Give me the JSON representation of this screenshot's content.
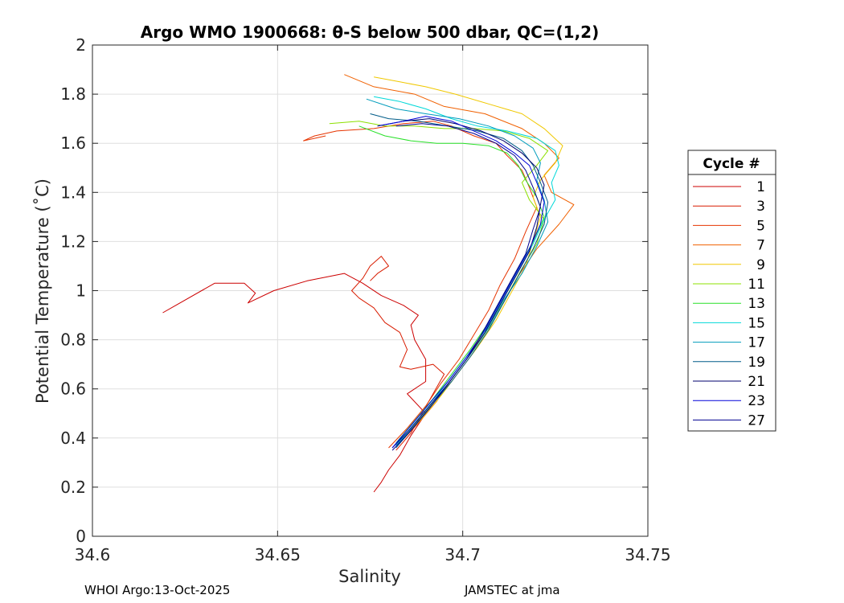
{
  "chart_data": {
    "type": "line",
    "title": "Argo WMO 1900668: θ-S below 500 dbar,  QC=(1,2)",
    "xlabel": "Salinity",
    "ylabel": "Potential Temperature (˚C)",
    "xlim": [
      34.6,
      34.75
    ],
    "ylim": [
      0,
      2
    ],
    "xticks": [
      34.6,
      34.65,
      34.7,
      34.75
    ],
    "xtick_labels": [
      "34.6",
      "34.65",
      "34.7",
      "34.75"
    ],
    "yticks": [
      0,
      0.2,
      0.4,
      0.6,
      0.8,
      1,
      1.2,
      1.4,
      1.6,
      1.8,
      2
    ],
    "ytick_labels": [
      "0",
      "0.2",
      "0.4",
      "0.6",
      "0.8",
      "1",
      "1.2",
      "1.4",
      "1.6",
      "1.8",
      "2"
    ],
    "grid": true,
    "legend": {
      "title": "Cycle #",
      "placement": "right"
    },
    "series": [
      {
        "name": "1",
        "color": "#cc0000",
        "points": [
          [
            34.676,
            0.18
          ],
          [
            34.678,
            0.22
          ],
          [
            34.68,
            0.27
          ],
          [
            34.683,
            0.33
          ],
          [
            34.686,
            0.41
          ],
          [
            34.69,
            0.5
          ],
          [
            34.685,
            0.58
          ],
          [
            34.69,
            0.63
          ],
          [
            34.69,
            0.72
          ],
          [
            34.687,
            0.8
          ],
          [
            34.686,
            0.86
          ],
          [
            34.688,
            0.9
          ],
          [
            34.684,
            0.94
          ],
          [
            34.678,
            0.98
          ],
          [
            34.673,
            1.03
          ],
          [
            34.668,
            1.07
          ],
          [
            34.658,
            1.04
          ],
          [
            34.649,
            1.0
          ],
          [
            34.642,
            0.95
          ],
          [
            34.644,
            0.99
          ],
          [
            34.641,
            1.03
          ],
          [
            34.633,
            1.03
          ],
          [
            34.619,
            0.91
          ]
        ]
      },
      {
        "name": "3",
        "color": "#d81c00",
        "points": [
          [
            34.682,
            0.35
          ],
          [
            34.686,
            0.42
          ],
          [
            34.689,
            0.5
          ],
          [
            34.692,
            0.58
          ],
          [
            34.695,
            0.66
          ],
          [
            34.692,
            0.7
          ],
          [
            34.686,
            0.68
          ],
          [
            34.683,
            0.69
          ],
          [
            34.685,
            0.76
          ],
          [
            34.683,
            0.83
          ],
          [
            34.679,
            0.87
          ],
          [
            34.676,
            0.93
          ],
          [
            34.672,
            0.97
          ],
          [
            34.67,
            1.0
          ],
          [
            34.673,
            1.05
          ],
          [
            34.675,
            1.1
          ],
          [
            34.678,
            1.14
          ],
          [
            34.68,
            1.1
          ],
          [
            34.677,
            1.07
          ],
          [
            34.675,
            1.04
          ]
        ]
      },
      {
        "name": "5",
        "color": "#e63400",
        "points": [
          [
            34.68,
            0.36
          ],
          [
            34.685,
            0.44
          ],
          [
            34.69,
            0.53
          ],
          [
            34.694,
            0.62
          ],
          [
            34.699,
            0.72
          ],
          [
            34.703,
            0.82
          ],
          [
            34.707,
            0.92
          ],
          [
            34.71,
            1.02
          ],
          [
            34.714,
            1.13
          ],
          [
            34.717,
            1.24
          ],
          [
            34.72,
            1.34
          ],
          [
            34.718,
            1.42
          ],
          [
            34.716,
            1.49
          ],
          [
            34.712,
            1.55
          ],
          [
            34.709,
            1.6
          ],
          [
            34.703,
            1.63
          ],
          [
            34.697,
            1.67
          ],
          [
            34.692,
            1.69
          ],
          [
            34.684,
            1.68
          ],
          [
            34.676,
            1.66
          ],
          [
            34.666,
            1.65
          ],
          [
            34.66,
            1.63
          ],
          [
            34.657,
            1.61
          ],
          [
            34.663,
            1.63
          ]
        ]
      },
      {
        "name": "7",
        "color": "#f06000",
        "points": [
          [
            34.683,
            0.38
          ],
          [
            34.688,
            0.46
          ],
          [
            34.693,
            0.55
          ],
          [
            34.697,
            0.64
          ],
          [
            34.702,
            0.74
          ],
          [
            34.706,
            0.84
          ],
          [
            34.711,
            0.95
          ],
          [
            34.715,
            1.06
          ],
          [
            34.72,
            1.17
          ],
          [
            34.726,
            1.27
          ],
          [
            34.73,
            1.35
          ],
          [
            34.724,
            1.4
          ],
          [
            34.722,
            1.47
          ],
          [
            34.726,
            1.54
          ],
          [
            34.722,
            1.6
          ],
          [
            34.716,
            1.66
          ],
          [
            34.706,
            1.72
          ],
          [
            34.695,
            1.75
          ],
          [
            34.687,
            1.8
          ],
          [
            34.676,
            1.83
          ],
          [
            34.668,
            1.88
          ]
        ]
      },
      {
        "name": "9",
        "color": "#f0c800",
        "points": [
          [
            34.684,
            0.4
          ],
          [
            34.689,
            0.48
          ],
          [
            34.694,
            0.57
          ],
          [
            34.699,
            0.67
          ],
          [
            34.704,
            0.77
          ],
          [
            34.709,
            0.88
          ],
          [
            34.713,
            0.99
          ],
          [
            34.717,
            1.1
          ],
          [
            34.719,
            1.2
          ],
          [
            34.721,
            1.3
          ],
          [
            34.719,
            1.38
          ],
          [
            34.721,
            1.45
          ],
          [
            34.725,
            1.52
          ],
          [
            34.727,
            1.59
          ],
          [
            34.722,
            1.66
          ],
          [
            34.716,
            1.72
          ],
          [
            34.707,
            1.76
          ],
          [
            34.698,
            1.8
          ],
          [
            34.69,
            1.83
          ],
          [
            34.683,
            1.85
          ],
          [
            34.676,
            1.87
          ]
        ]
      },
      {
        "name": "11",
        "color": "#8ce000",
        "points": [
          [
            34.683,
            0.38
          ],
          [
            34.688,
            0.47
          ],
          [
            34.693,
            0.56
          ],
          [
            34.698,
            0.66
          ],
          [
            34.703,
            0.76
          ],
          [
            34.708,
            0.87
          ],
          [
            34.712,
            0.98
          ],
          [
            34.716,
            1.09
          ],
          [
            34.72,
            1.19
          ],
          [
            34.722,
            1.29
          ],
          [
            34.718,
            1.37
          ],
          [
            34.716,
            1.44
          ],
          [
            34.72,
            1.51
          ],
          [
            34.723,
            1.57
          ],
          [
            34.718,
            1.62
          ],
          [
            34.711,
            1.65
          ],
          [
            34.703,
            1.66
          ],
          [
            34.695,
            1.66
          ],
          [
            34.687,
            1.67
          ],
          [
            34.679,
            1.67
          ],
          [
            34.672,
            1.69
          ],
          [
            34.664,
            1.68
          ]
        ]
      },
      {
        "name": "13",
        "color": "#28e028",
        "points": [
          [
            34.682,
            0.38
          ],
          [
            34.687,
            0.47
          ],
          [
            34.692,
            0.56
          ],
          [
            34.697,
            0.66
          ],
          [
            34.702,
            0.76
          ],
          [
            34.707,
            0.87
          ],
          [
            34.711,
            0.98
          ],
          [
            34.715,
            1.09
          ],
          [
            34.719,
            1.2
          ],
          [
            34.722,
            1.3
          ],
          [
            34.72,
            1.38
          ],
          [
            34.717,
            1.45
          ],
          [
            34.715,
            1.51
          ],
          [
            34.712,
            1.56
          ],
          [
            34.707,
            1.59
          ],
          [
            34.7,
            1.6
          ],
          [
            34.693,
            1.6
          ],
          [
            34.686,
            1.61
          ],
          [
            34.679,
            1.63
          ],
          [
            34.672,
            1.67
          ]
        ]
      },
      {
        "name": "15",
        "color": "#00d8d8",
        "points": [
          [
            34.682,
            0.37
          ],
          [
            34.687,
            0.46
          ],
          [
            34.692,
            0.55
          ],
          [
            34.697,
            0.65
          ],
          [
            34.702,
            0.75
          ],
          [
            34.707,
            0.86
          ],
          [
            34.711,
            0.97
          ],
          [
            34.715,
            1.08
          ],
          [
            34.719,
            1.19
          ],
          [
            34.722,
            1.29
          ],
          [
            34.725,
            1.37
          ],
          [
            34.724,
            1.44
          ],
          [
            34.726,
            1.51
          ],
          [
            34.725,
            1.57
          ],
          [
            34.72,
            1.62
          ],
          [
            34.712,
            1.65
          ],
          [
            34.704,
            1.67
          ],
          [
            34.697,
            1.7
          ],
          [
            34.69,
            1.74
          ],
          [
            34.683,
            1.77
          ],
          [
            34.676,
            1.79
          ]
        ]
      },
      {
        "name": "17",
        "color": "#009cbc",
        "points": [
          [
            34.682,
            0.37
          ],
          [
            34.687,
            0.45
          ],
          [
            34.692,
            0.54
          ],
          [
            34.697,
            0.64
          ],
          [
            34.702,
            0.74
          ],
          [
            34.707,
            0.85
          ],
          [
            34.711,
            0.96
          ],
          [
            34.716,
            1.07
          ],
          [
            34.72,
            1.18
          ],
          [
            34.723,
            1.28
          ],
          [
            34.722,
            1.37
          ],
          [
            34.72,
            1.45
          ],
          [
            34.721,
            1.52
          ],
          [
            34.719,
            1.58
          ],
          [
            34.714,
            1.63
          ],
          [
            34.707,
            1.67
          ],
          [
            34.699,
            1.7
          ],
          [
            34.69,
            1.72
          ],
          [
            34.682,
            1.74
          ],
          [
            34.674,
            1.78
          ]
        ]
      },
      {
        "name": "19",
        "color": "#005c88",
        "points": [
          [
            34.682,
            0.36
          ],
          [
            34.687,
            0.45
          ],
          [
            34.692,
            0.54
          ],
          [
            34.697,
            0.63
          ],
          [
            34.702,
            0.73
          ],
          [
            34.707,
            0.84
          ],
          [
            34.711,
            0.95
          ],
          [
            34.715,
            1.06
          ],
          [
            34.719,
            1.17
          ],
          [
            34.722,
            1.27
          ],
          [
            34.723,
            1.36
          ],
          [
            34.721,
            1.44
          ],
          [
            34.719,
            1.51
          ],
          [
            34.716,
            1.57
          ],
          [
            34.711,
            1.62
          ],
          [
            34.704,
            1.65
          ],
          [
            34.696,
            1.67
          ],
          [
            34.688,
            1.69
          ],
          [
            34.68,
            1.7
          ],
          [
            34.675,
            1.72
          ]
        ]
      },
      {
        "name": "21",
        "color": "#00006e",
        "points": [
          [
            34.681,
            0.36
          ],
          [
            34.686,
            0.44
          ],
          [
            34.691,
            0.53
          ],
          [
            34.696,
            0.62
          ],
          [
            34.701,
            0.72
          ],
          [
            34.706,
            0.83
          ],
          [
            34.71,
            0.94
          ],
          [
            34.714,
            1.05
          ],
          [
            34.718,
            1.16
          ],
          [
            34.72,
            1.26
          ],
          [
            34.721,
            1.35
          ],
          [
            34.722,
            1.43
          ],
          [
            34.72,
            1.5
          ],
          [
            34.716,
            1.56
          ],
          [
            34.711,
            1.61
          ],
          [
            34.705,
            1.65
          ],
          [
            34.698,
            1.68
          ],
          [
            34.691,
            1.7
          ],
          [
            34.684,
            1.69
          ],
          [
            34.677,
            1.67
          ]
        ]
      },
      {
        "name": "23",
        "color": "#0000d8",
        "points": [
          [
            34.681,
            0.36
          ],
          [
            34.686,
            0.45
          ],
          [
            34.691,
            0.54
          ],
          [
            34.696,
            0.63
          ],
          [
            34.701,
            0.73
          ],
          [
            34.706,
            0.84
          ],
          [
            34.71,
            0.95
          ],
          [
            34.714,
            1.06
          ],
          [
            34.718,
            1.17
          ],
          [
            34.721,
            1.27
          ],
          [
            34.722,
            1.36
          ],
          [
            34.72,
            1.44
          ],
          [
            34.718,
            1.51
          ],
          [
            34.714,
            1.56
          ],
          [
            34.709,
            1.61
          ],
          [
            34.703,
            1.65
          ],
          [
            34.697,
            1.69
          ],
          [
            34.69,
            1.71
          ],
          [
            34.684,
            1.69
          ],
          [
            34.677,
            1.67
          ]
        ]
      },
      {
        "name": "27",
        "color": "#000090",
        "points": [
          [
            34.681,
            0.35
          ],
          [
            34.686,
            0.43
          ],
          [
            34.691,
            0.52
          ],
          [
            34.696,
            0.62
          ],
          [
            34.701,
            0.72
          ],
          [
            34.705,
            0.82
          ],
          [
            34.709,
            0.93
          ],
          [
            34.713,
            1.04
          ],
          [
            34.717,
            1.15
          ],
          [
            34.719,
            1.25
          ],
          [
            34.721,
            1.34
          ],
          [
            34.719,
            1.42
          ],
          [
            34.717,
            1.49
          ],
          [
            34.714,
            1.55
          ],
          [
            34.709,
            1.6
          ],
          [
            34.703,
            1.64
          ],
          [
            34.696,
            1.67
          ],
          [
            34.689,
            1.68
          ],
          [
            34.682,
            1.67
          ]
        ]
      }
    ]
  },
  "footer": {
    "left": "WHOI Argo:13-Oct-2025",
    "right": "JAMSTEC at jma"
  }
}
